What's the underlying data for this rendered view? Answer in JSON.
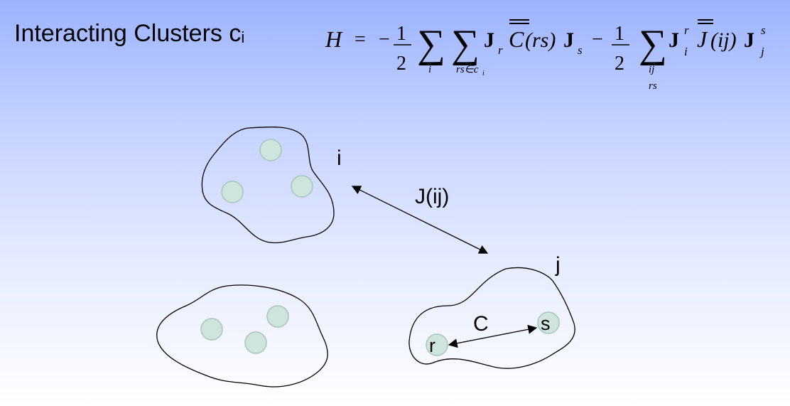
{
  "title": {
    "main": "Interacting Clusters c",
    "sub": "i"
  },
  "formula": {
    "lhs": "H",
    "equals": "=",
    "minus": "−",
    "half_num": "1",
    "half_den": "2",
    "sum": "∑",
    "sum1_index": "i",
    "sum2_index": "rs∈c",
    "sum2_index_sub": "i",
    "J": "J",
    "r": "r",
    "C": "C",
    "rs_arg": "(rs)",
    "s": "s",
    "sum3_index_top": "ij",
    "sum3_index_bottom": "rs",
    "Jbar": "J",
    "ij_arg": "(ij)",
    "i": "i",
    "j": "j"
  },
  "diagram": {
    "cluster_i_label": "i",
    "cluster_j_label": "j",
    "inter_cluster_label": "J(ij)",
    "intra_cluster_label": "C",
    "site_r_label": "r",
    "site_s_label": "s"
  },
  "colors": {
    "site_fill": "#cfe4dc",
    "site_stroke": "#a9c4ba",
    "background_top": "#9db3ff",
    "background_bottom": "#ffffff"
  }
}
